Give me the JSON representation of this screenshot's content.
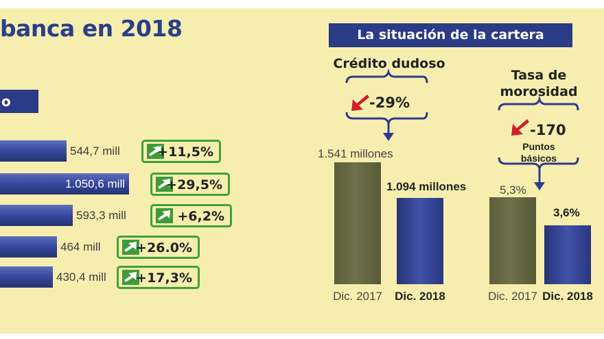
{
  "title": "banca en 2018",
  "left_panel": {
    "section_label": "o",
    "bars": [
      {
        "label": "544,7 mill",
        "value": 544.7,
        "change": "+11,5%"
      },
      {
        "label": "1.050,6 mill",
        "value": 1050.6,
        "change": "+29,5%"
      },
      {
        "label": "593,3 mill",
        "value": 593.3,
        "change": "+6,2%"
      },
      {
        "label": "464 mill",
        "value": 464,
        "change": "+26.0%"
      },
      {
        "label": "430,4 mill",
        "value": 430.4,
        "change": "+17,3%"
      }
    ]
  },
  "right_panel": {
    "title": "La situación de la cartera",
    "groups": [
      {
        "title": "Crédito dudoso",
        "change": "-29%",
        "note": "",
        "bars": [
          {
            "category": "Dic. 2017",
            "value_label": "1.541 millones",
            "value": 1541
          },
          {
            "category": "Dic. 2018",
            "value_label": "1.094 millones",
            "value": 1094
          }
        ]
      },
      {
        "title": "Tasa de morosidad",
        "title_lines": [
          "Tasa de",
          "morosidad"
        ],
        "change": "-170",
        "note_lines": [
          "Puntos",
          "básicos"
        ],
        "bars": [
          {
            "category": "Dic. 2017",
            "value_label": "5,3%",
            "value": 5.3
          },
          {
            "category": "Dic. 2018",
            "value_label": "3,6%",
            "value": 3.6
          }
        ]
      }
    ]
  },
  "chart_data": [
    {
      "type": "bar",
      "orientation": "horizontal",
      "values": [
        544.7,
        1050.6,
        593.3,
        464,
        430.4
      ],
      "data_labels": [
        "544,7 mill",
        "1.050,6 mill",
        "593,3 mill",
        "464 mill",
        "430,4 mill"
      ],
      "changes": [
        "+11,5%",
        "+29,5%",
        "+6,2%",
        "+26.0%",
        "+17,3%"
      ]
    },
    {
      "type": "bar",
      "title": "Crédito dudoso",
      "categories": [
        "Dic. 2017",
        "Dic. 2018"
      ],
      "values": [
        1541,
        1094
      ],
      "data_labels": [
        "1.541 millones",
        "1.094 millones"
      ],
      "change": "-29%"
    },
    {
      "type": "bar",
      "title": "Tasa de morosidad",
      "categories": [
        "Dic. 2017",
        "Dic. 2018"
      ],
      "values": [
        5.3,
        3.6
      ],
      "data_labels": [
        "5,3%",
        "3,6%"
      ],
      "change": "-170 Puntos básicos"
    }
  ],
  "colors": {
    "background": "#f6eeae",
    "navy": "#2b3b85",
    "title_blue": "#2a3f8a",
    "increase_green": "#3ea13a",
    "decrease_red": "#d0202a",
    "bar_2017": "#666843",
    "bar_2018": "#3a4aa0"
  },
  "icons": {
    "increase": "up-right-arrow-icon",
    "decrease": "down-left-arrow-icon"
  }
}
